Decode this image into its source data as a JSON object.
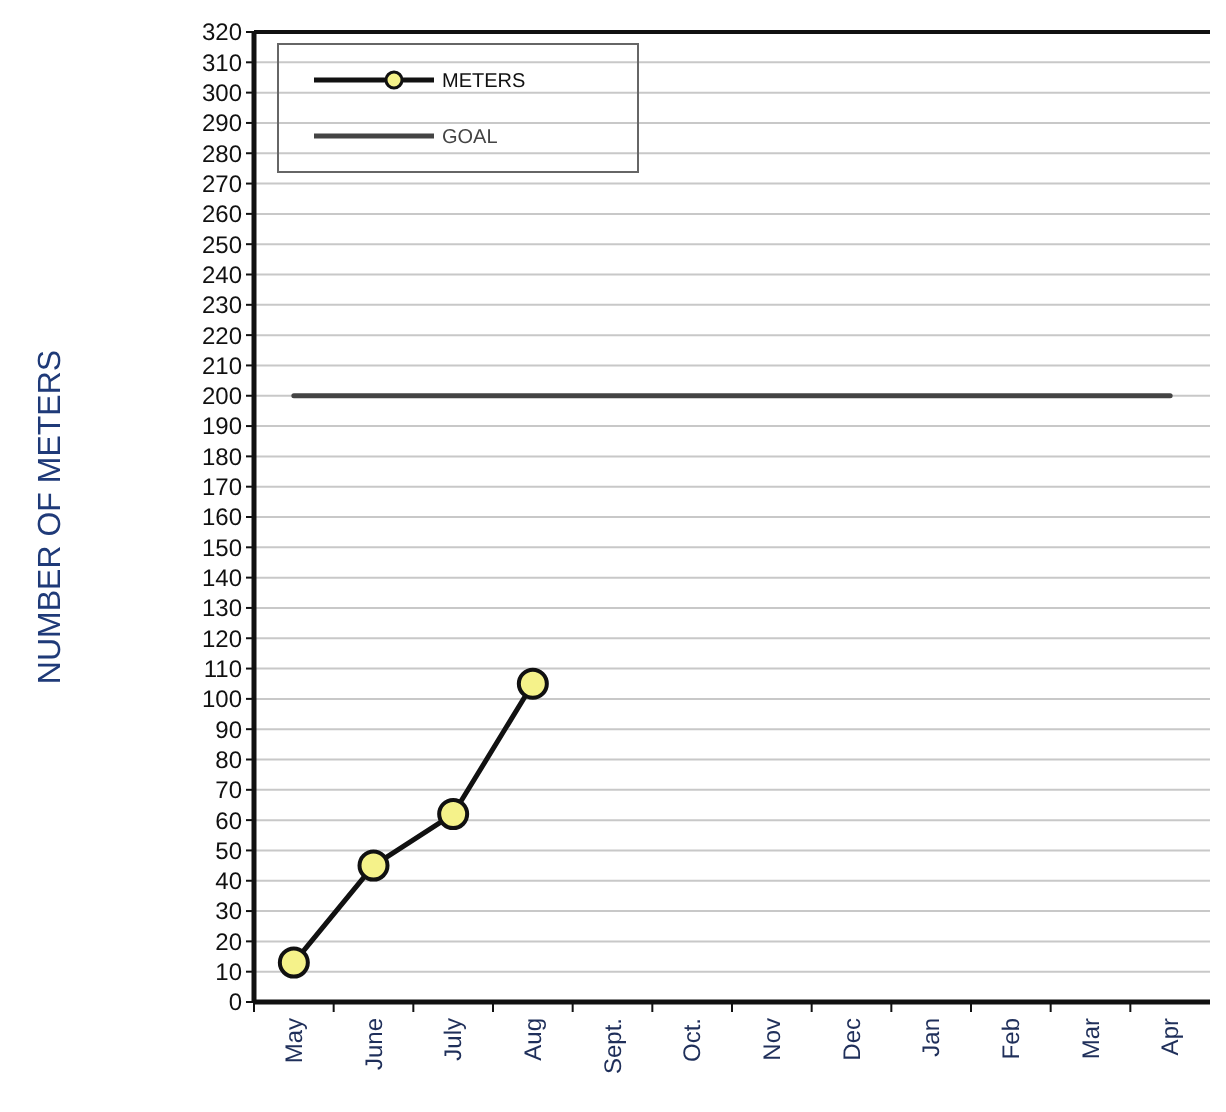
{
  "chart_data": {
    "type": "line",
    "ylabel": "NUMBER OF METERS",
    "categories": [
      "May",
      "June",
      "July",
      "Aug",
      "Sept.",
      "Oct.",
      "Nov",
      "Dec",
      "Jan",
      "Feb",
      "Mar",
      "Apr"
    ],
    "series": [
      {
        "name": "METERS",
        "color": "#111111",
        "marker": "circle",
        "values": [
          13,
          45,
          62,
          105,
          null,
          null,
          null,
          null,
          null,
          null,
          null,
          null
        ]
      },
      {
        "name": "GOAL",
        "color": "#444444",
        "marker": "none",
        "values": [
          200,
          200,
          200,
          200,
          200,
          200,
          200,
          200,
          200,
          200,
          200,
          200
        ]
      }
    ],
    "ylim": [
      0,
      320
    ],
    "yticks": [
      0,
      10,
      20,
      30,
      40,
      50,
      60,
      70,
      80,
      90,
      100,
      110,
      120,
      130,
      140,
      150,
      160,
      170,
      180,
      190,
      200,
      210,
      220,
      230,
      240,
      250,
      260,
      270,
      280,
      290,
      300,
      310,
      320
    ],
    "grid": "y",
    "legend": "top left"
  }
}
